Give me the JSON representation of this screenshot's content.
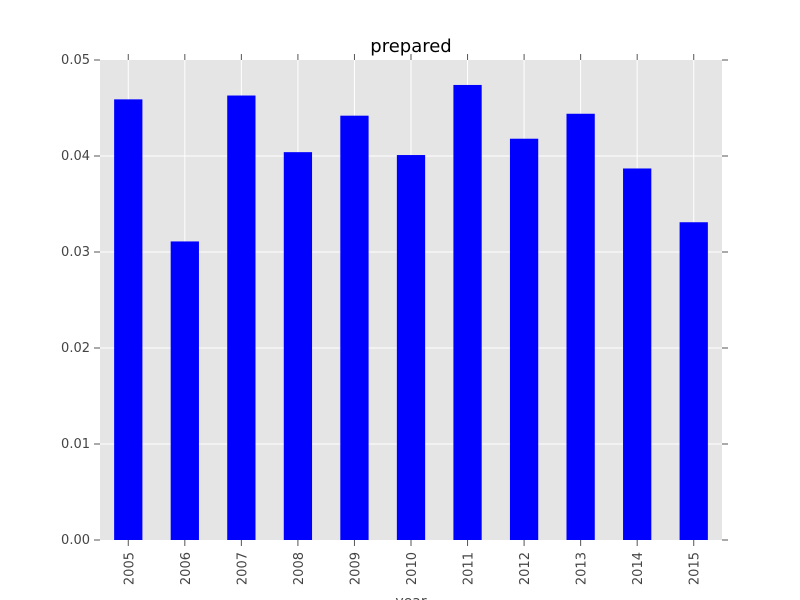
{
  "chart_data": {
    "type": "bar",
    "title": "prepared",
    "xlabel": "year",
    "ylabel": "",
    "categories": [
      "2005",
      "2006",
      "2007",
      "2008",
      "2009",
      "2010",
      "2011",
      "2012",
      "2013",
      "2014",
      "2015"
    ],
    "values": [
      0.0459,
      0.0311,
      0.0463,
      0.0404,
      0.0442,
      0.0401,
      0.0474,
      0.0418,
      0.0444,
      0.0387,
      0.0331
    ],
    "ylim": [
      0.0,
      0.05
    ],
    "yticks": [
      "0.00",
      "0.01",
      "0.02",
      "0.03",
      "0.04",
      "0.05"
    ],
    "ytick_values": [
      0.0,
      0.01,
      0.02,
      0.03,
      0.04,
      0.05
    ],
    "grid": true,
    "colors": {
      "bar": "#0000ff",
      "plot_background": "#e5e5e5",
      "grid": "#ffffff",
      "tick": "#555555"
    }
  }
}
